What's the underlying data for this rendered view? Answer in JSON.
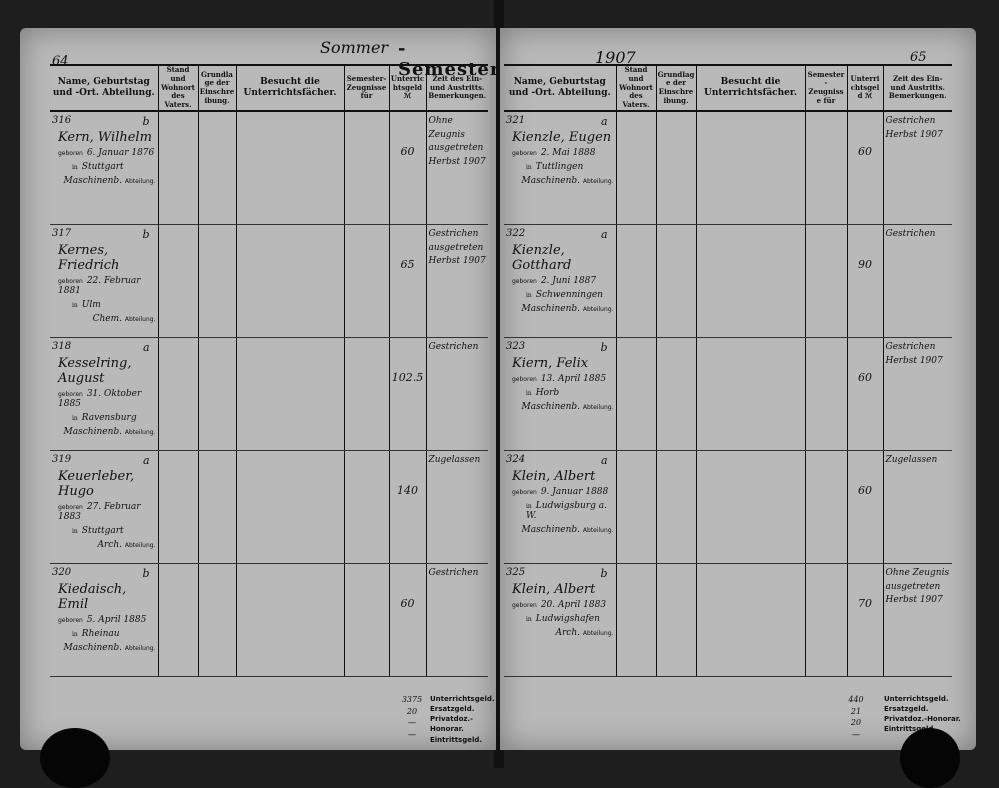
{
  "left_page": {
    "page_number": "64",
    "semester_hand": "Sommer",
    "semester_label": "-Semester",
    "headers": {
      "name": "Name, Geburtstag und -Ort. Abteilung.",
      "stand": "Stand und Wohnort des Vaters.",
      "grundlage": "Grundlage der Einschreibung.",
      "besucht": "Besucht die Unterrichtsfächer.",
      "zeugnisse": "Semester-Zeugnisse für",
      "unterricht": "Unterrichtsgeld ℳ",
      "zeit": "Zeit des Ein- und Austritts. Bemerkungen."
    },
    "entries": [
      {
        "no": "316",
        "cls": "b",
        "name": "Kern, Wilhelm",
        "born": "6. Januar 1876",
        "place": "Stuttgart",
        "dept": "Maschinenb.",
        "fee": "60",
        "remark": "Ohne Zeugnis ausgetreten Herbst 1907"
      },
      {
        "no": "317",
        "cls": "b",
        "name": "Kernes, Friedrich",
        "born": "22. Februar 1881",
        "place": "Ulm",
        "dept": "Chem.",
        "fee": "65",
        "remark": "Gestrichen ausgetreten Herbst 1907"
      },
      {
        "no": "318",
        "cls": "a",
        "name": "Kesselring, August",
        "born": "31. Oktober 1885",
        "place": "Ravensburg",
        "dept": "Maschinenb.",
        "fee": "102.5",
        "remark": "Gestrichen"
      },
      {
        "no": "319",
        "cls": "a",
        "name": "Keuerleber, Hugo",
        "born": "27. Februar 1883",
        "place": "Stuttgart",
        "dept": "Arch.",
        "fee": "140",
        "remark": "Zugelassen"
      },
      {
        "no": "320",
        "cls": "b",
        "name": "Kiedaisch, Emil",
        "born": "5. April 1885",
        "place": "Rheinau",
        "dept": "Maschinenb.",
        "fee": "60",
        "remark": "Gestrichen"
      }
    ],
    "footer": {
      "values": [
        "3375",
        "20",
        "—",
        "—"
      ]
    }
  },
  "right_page": {
    "page_number": "65",
    "year_hand": "1907",
    "headers": {
      "name": "Name, Geburtstag und -Ort. Abteilung.",
      "stand": "Stand und Wohnort des Vaters.",
      "grundlage": "Grundlage der Einschreibung.",
      "besucht": "Besucht die Unterrichtsfächer.",
      "zeugnisse": "Semester-Zeugnisse für",
      "unterricht": "Unterrichtsgeld ℳ",
      "zeit": "Zeit des Ein- und Austritts. Bemerkungen."
    },
    "entries": [
      {
        "no": "321",
        "cls": "a",
        "name": "Kienzle, Eugen",
        "born": "2. Mai 1888",
        "place": "Tuttlingen",
        "dept": "Maschinenb.",
        "fee": "60",
        "remark": "Gestrichen Herbst 1907"
      },
      {
        "no": "322",
        "cls": "a",
        "name": "Kienzle, Gotthard",
        "born": "2. Juni 1887",
        "place": "Schwenningen",
        "dept": "Maschinenb.",
        "fee": "90",
        "remark": "Gestrichen"
      },
      {
        "no": "323",
        "cls": "b",
        "name": "Kiern, Felix",
        "born": "13. April 1885",
        "place": "Horb",
        "dept": "Maschinenb.",
        "fee": "60",
        "remark": "Gestrichen Herbst 1907"
      },
      {
        "no": "324",
        "cls": "a",
        "name": "Klein, Albert",
        "born": "9. Januar 1888",
        "place": "Ludwigsburg a. W.",
        "dept": "Maschinenb.",
        "fee": "60",
        "remark": "Zugelassen"
      },
      {
        "no": "325",
        "cls": "b",
        "name": "Klein, Albert",
        "born": "20. April 1883",
        "place": "Ludwigshafen",
        "dept": "Arch.",
        "fee": "70",
        "remark": "Ohne Zeugnis ausgetreten Herbst 1907"
      }
    ],
    "footer": {
      "values": [
        "440",
        "21",
        "20",
        "—"
      ]
    }
  },
  "printed": {
    "born_label": "geboren",
    "in_label": "in",
    "dept_label": "Abteilung.",
    "footer_labels": [
      "Unterrichtsgeld.",
      "Ersatzgeld.",
      "Privatdoz.-Honorar.",
      "Eintrittsgeld."
    ]
  }
}
